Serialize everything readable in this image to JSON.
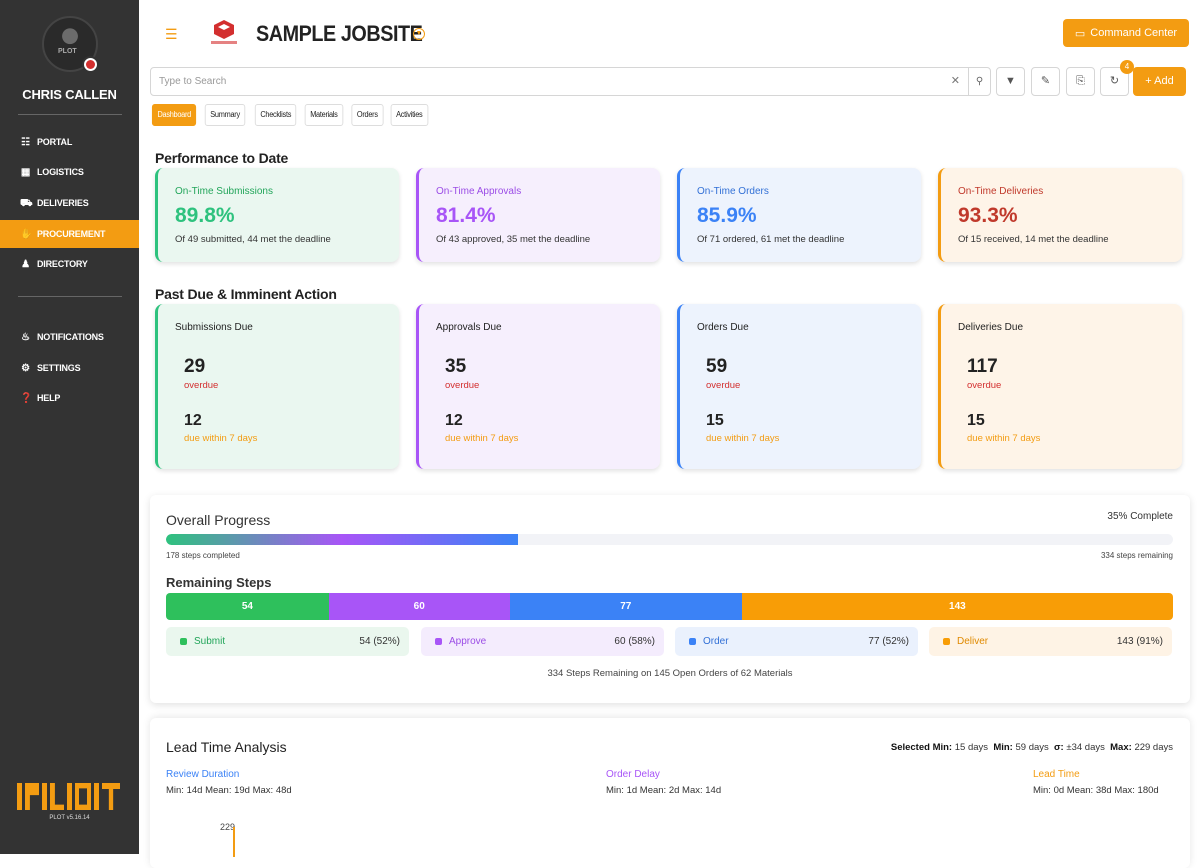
{
  "sidebar": {
    "user_name": "CHRIS CALLEN",
    "avatar_text": "PLOT",
    "nav": [
      {
        "label": "PORTAL",
        "icon": "sitemap-icon",
        "active": false
      },
      {
        "label": "LOGISTICS",
        "icon": "map-icon",
        "active": false
      },
      {
        "label": "DELIVERIES",
        "icon": "truck-icon",
        "active": false
      },
      {
        "label": "PROCUREMENT",
        "icon": "handshake-icon",
        "active": true
      },
      {
        "label": "DIRECTORY",
        "icon": "users-icon",
        "active": false
      }
    ],
    "secondary": [
      {
        "label": "NOTIFICATIONS",
        "icon": "bell-icon"
      },
      {
        "label": "SETTINGS",
        "icon": "gear-icon"
      },
      {
        "label": "HELP",
        "icon": "question-icon"
      }
    ],
    "version": "PLOT v5.16.14"
  },
  "header": {
    "title": "SAMPLE JOBSITE",
    "command_center": "Command Center",
    "search_placeholder": "Type to Search",
    "add_label": "Add",
    "refresh_badge": "4"
  },
  "tabs": [
    "Dashboard",
    "Summary",
    "Checklists",
    "Materials",
    "Orders",
    "Activities"
  ],
  "performance": {
    "title": "Performance to Date",
    "cards": [
      {
        "label": "On-Time Submissions",
        "pct": "89.8%",
        "sub": "Of 49 submitted, 44 met the deadline",
        "color": "#2ec27e",
        "label_color": "#22a55a",
        "bg": "#eaf7f0"
      },
      {
        "label": "On-Time Approvals",
        "pct": "81.4%",
        "sub": "Of 43 approved, 35 met the deadline",
        "color": "#a855f7",
        "label_color": "#9b4de6",
        "bg": "#f6effd"
      },
      {
        "label": "On-Time Orders",
        "pct": "85.9%",
        "sub": "Of 71 ordered, 61 met the deadline",
        "color": "#3b82f6",
        "label_color": "#3270d6",
        "bg": "#edf3fd"
      },
      {
        "label": "On-Time Deliveries",
        "pct": "93.3%",
        "sub": "Of 15 received, 14 met the deadline",
        "color": "#f39c12",
        "label_color": "#c0392b",
        "bg": "#fef4e8"
      }
    ]
  },
  "past_due": {
    "title": "Past Due & Imminent Action",
    "overdue_label": "overdue",
    "due_label": "due within 7 days",
    "cards": [
      {
        "label": "Submissions Due",
        "overdue": "29",
        "due": "12"
      },
      {
        "label": "Approvals Due",
        "overdue": "35",
        "due": "12"
      },
      {
        "label": "Orders Due",
        "overdue": "59",
        "due": "15"
      },
      {
        "label": "Deliveries Due",
        "overdue": "117",
        "due": "15"
      }
    ]
  },
  "progress": {
    "title": "Overall Progress",
    "complete_text": "35% Complete",
    "complete_fraction": 0.35,
    "completed_text": "178 steps completed",
    "remaining_text": "334 steps remaining",
    "remaining_title": "Remaining Steps",
    "segments": [
      {
        "name": "Submit",
        "value": 54,
        "label": "54",
        "detail": "54 (52%)",
        "color": "#2ec05c",
        "bg": "#eaf7ee",
        "text": "#22a55a"
      },
      {
        "name": "Approve",
        "value": 60,
        "label": "60",
        "detail": "60 (58%)",
        "color": "#a855f7",
        "bg": "#f4ecfd",
        "text": "#9b4de6"
      },
      {
        "name": "Order",
        "value": 77,
        "label": "77",
        "detail": "77 (52%)",
        "color": "#3b82f6",
        "bg": "#eaf1fd",
        "text": "#3270d6"
      },
      {
        "name": "Deliver",
        "value": 143,
        "label": "143",
        "detail": "143 (91%)",
        "color": "#f89d06",
        "bg": "#fef3e5",
        "text": "#e08a00"
      }
    ],
    "footer": "334 Steps Remaining on 145 Open Orders of 62 Materials"
  },
  "lead_time": {
    "title": "Lead Time Analysis",
    "stats": {
      "selected_min_label": "Selected Min:",
      "selected_min": "15 days",
      "min_label": "Min:",
      "min": "59 days",
      "sigma_label": "σ:",
      "sigma": "±34 days",
      "max_label": "Max:",
      "max": "229 days"
    },
    "columns": [
      {
        "title": "Review Duration",
        "metrics": "Min: 14d  Mean: 19d  Max: 48d",
        "color": "#3b82f6"
      },
      {
        "title": "Order Delay",
        "metrics": "Min: 1d  Mean: 2d  Max: 14d",
        "color": "#a855f7"
      },
      {
        "title": "Lead Time",
        "metrics": "Min: 0d  Mean: 38d  Max: 180d",
        "color": "#f39c12"
      }
    ],
    "axis_top": "229"
  }
}
